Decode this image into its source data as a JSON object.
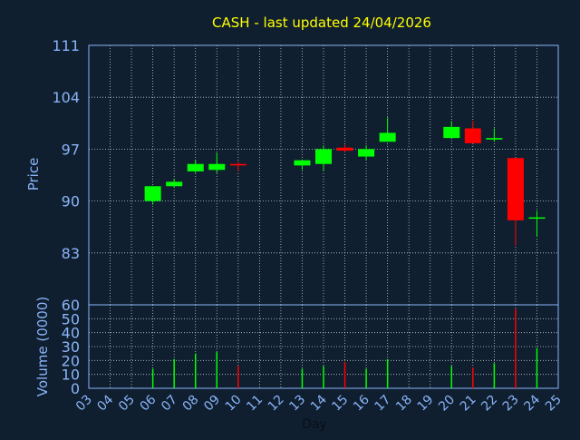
{
  "chart_data": [
    {
      "type": "candlestick",
      "title": "CASH - last updated 24/04/2026",
      "ylabel": "Price",
      "xlabel": "Day",
      "ylim": [
        76,
        111
      ],
      "y_ticks": [
        111,
        104,
        97,
        90,
        83
      ],
      "x_ticks": [
        "03",
        "04",
        "05",
        "06",
        "07",
        "08",
        "09",
        "10",
        "11",
        "12",
        "13",
        "14",
        "15",
        "16",
        "17",
        "18",
        "19",
        "20",
        "21",
        "22",
        "23",
        "24",
        "25"
      ],
      "grid": true,
      "colors": {
        "up": "#00ff00",
        "down": "#ff0000",
        "title": "#ffff00",
        "axis_text": "#8ab4f8",
        "grid": "#ffffff"
      },
      "candles": [
        {
          "day": 6,
          "open": 90.0,
          "high": 92.0,
          "low": 89.5,
          "close": 92.0
        },
        {
          "day": 7,
          "open": 92.0,
          "high": 93.0,
          "low": 91.8,
          "close": 92.6
        },
        {
          "day": 8,
          "open": 94.0,
          "high": 95.5,
          "low": 93.8,
          "close": 95.0
        },
        {
          "day": 9,
          "open": 94.2,
          "high": 96.5,
          "low": 93.8,
          "close": 95.0
        },
        {
          "day": 10,
          "open": 95.0,
          "high": 95.3,
          "low": 94.0,
          "close": 94.8
        },
        {
          "day": 13,
          "open": 94.8,
          "high": 95.5,
          "low": 94.2,
          "close": 95.5
        },
        {
          "day": 14,
          "open": 95.0,
          "high": 97.5,
          "low": 94.0,
          "close": 97.0
        },
        {
          "day": 15,
          "open": 97.2,
          "high": 97.6,
          "low": 96.6,
          "close": 96.8
        },
        {
          "day": 16,
          "open": 96.0,
          "high": 97.5,
          "low": 95.5,
          "close": 97.0
        },
        {
          "day": 17,
          "open": 98.0,
          "high": 101.3,
          "low": 98.0,
          "close": 99.2
        },
        {
          "day": 20,
          "open": 98.5,
          "high": 100.8,
          "low": 98.5,
          "close": 100.0
        },
        {
          "day": 21,
          "open": 99.8,
          "high": 100.8,
          "low": 97.8,
          "close": 97.8
        },
        {
          "day": 22,
          "open": 98.3,
          "high": 99.8,
          "low": 98.0,
          "close": 98.5
        },
        {
          "day": 23,
          "open": 95.8,
          "high": 95.8,
          "low": 84.0,
          "close": 87.4
        },
        {
          "day": 24,
          "open": 87.8,
          "high": 88.7,
          "low": 85.2,
          "close": 87.8
        }
      ]
    },
    {
      "type": "bar",
      "ylabel": "Volume (0000)",
      "xlabel": "Day",
      "ylim": [
        0,
        60
      ],
      "y_ticks": [
        60,
        50,
        40,
        30,
        20,
        10,
        0
      ],
      "grid": true,
      "bars": [
        {
          "day": 6,
          "value": 14,
          "direction": "up"
        },
        {
          "day": 7,
          "value": 21,
          "direction": "up"
        },
        {
          "day": 8,
          "value": 25,
          "direction": "up"
        },
        {
          "day": 9,
          "value": 26,
          "direction": "up"
        },
        {
          "day": 10,
          "value": 16,
          "direction": "down"
        },
        {
          "day": 13,
          "value": 14,
          "direction": "up"
        },
        {
          "day": 14,
          "value": 16,
          "direction": "up"
        },
        {
          "day": 15,
          "value": 19,
          "direction": "down"
        },
        {
          "day": 16,
          "value": 14,
          "direction": "up"
        },
        {
          "day": 17,
          "value": 21,
          "direction": "up"
        },
        {
          "day": 20,
          "value": 16,
          "direction": "up"
        },
        {
          "day": 21,
          "value": 15,
          "direction": "down"
        },
        {
          "day": 22,
          "value": 18,
          "direction": "up"
        },
        {
          "day": 23,
          "value": 57,
          "direction": "down"
        },
        {
          "day": 24,
          "value": 29,
          "direction": "up"
        }
      ]
    }
  ]
}
